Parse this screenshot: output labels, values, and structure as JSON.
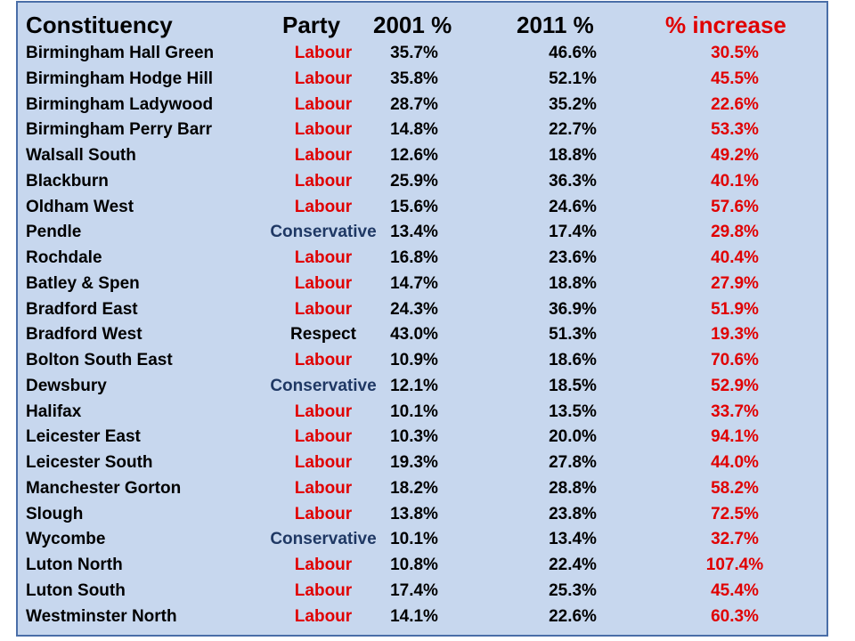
{
  "headers": {
    "constituency": "Constituency",
    "party": "Party",
    "y2001": "2001 %",
    "y2011": "2011 %",
    "increase": "% increase"
  },
  "colors": {
    "labour": "#e00000",
    "conservative": "#1f3864",
    "respect": "#000000",
    "increase": "#e00000",
    "background": "#c7d7ee",
    "border": "#4a6ea8"
  },
  "rows": [
    {
      "constituency": "Birmingham Hall Green",
      "party": "Labour",
      "y2001": "35.7%",
      "y2011": "46.6%",
      "increase": "30.5%"
    },
    {
      "constituency": "Birmingham Hodge Hill",
      "party": "Labour",
      "y2001": "35.8%",
      "y2011": "52.1%",
      "increase": "45.5%"
    },
    {
      "constituency": "Birmingham Ladywood",
      "party": "Labour",
      "y2001": "28.7%",
      "y2011": "35.2%",
      "increase": "22.6%"
    },
    {
      "constituency": "Birmingham Perry Barr",
      "party": "Labour",
      "y2001": "14.8%",
      "y2011": "22.7%",
      "increase": "53.3%"
    },
    {
      "constituency": "Walsall South",
      "party": "Labour",
      "y2001": "12.6%",
      "y2011": "18.8%",
      "increase": "49.2%"
    },
    {
      "constituency": "Blackburn",
      "party": "Labour",
      "y2001": "25.9%",
      "y2011": "36.3%",
      "increase": "40.1%"
    },
    {
      "constituency": "Oldham West",
      "party": "Labour",
      "y2001": "15.6%",
      "y2011": "24.6%",
      "increase": "57.6%"
    },
    {
      "constituency": "Pendle",
      "party": "Conservative",
      "y2001": "13.4%",
      "y2011": "17.4%",
      "increase": "29.8%"
    },
    {
      "constituency": "Rochdale",
      "party": "Labour",
      "y2001": "16.8%",
      "y2011": "23.6%",
      "increase": "40.4%"
    },
    {
      "constituency": "Batley & Spen",
      "party": "Labour",
      "y2001": "14.7%",
      "y2011": "18.8%",
      "increase": "27.9%"
    },
    {
      "constituency": "Bradford East",
      "party": "Labour",
      "y2001": "24.3%",
      "y2011": "36.9%",
      "increase": "51.9%"
    },
    {
      "constituency": "Bradford West",
      "party": "Respect",
      "y2001": "43.0%",
      "y2011": "51.3%",
      "increase": "19.3%"
    },
    {
      "constituency": "Bolton South East",
      "party": "Labour",
      "y2001": "10.9%",
      "y2011": "18.6%",
      "increase": "70.6%"
    },
    {
      "constituency": "Dewsbury",
      "party": "Conservative",
      "y2001": "12.1%",
      "y2011": "18.5%",
      "increase": "52.9%"
    },
    {
      "constituency": "Halifax",
      "party": "Labour",
      "y2001": "10.1%",
      "y2011": "13.5%",
      "increase": "33.7%"
    },
    {
      "constituency": "Leicester East",
      "party": "Labour",
      "y2001": "10.3%",
      "y2011": "20.0%",
      "increase": "94.1%"
    },
    {
      "constituency": "Leicester South",
      "party": "Labour",
      "y2001": "19.3%",
      "y2011": "27.8%",
      "increase": "44.0%"
    },
    {
      "constituency": "Manchester Gorton",
      "party": "Labour",
      "y2001": "18.2%",
      "y2011": "28.8%",
      "increase": "58.2%"
    },
    {
      "constituency": "Slough",
      "party": "Labour",
      "y2001": "13.8%",
      "y2011": "23.8%",
      "increase": "72.5%"
    },
    {
      "constituency": "Wycombe",
      "party": "Conservative",
      "y2001": "10.1%",
      "y2011": "13.4%",
      "increase": "32.7%"
    },
    {
      "constituency": "Luton North",
      "party": "Labour",
      "y2001": "10.8%",
      "y2011": "22.4%",
      "increase": "107.4%"
    },
    {
      "constituency": "Luton South",
      "party": "Labour",
      "y2001": "17.4%",
      "y2011": "25.3%",
      "increase": "45.4%"
    },
    {
      "constituency": "Westminster North",
      "party": "Labour",
      "y2001": "14.1%",
      "y2011": "22.6%",
      "increase": "60.3%"
    }
  ]
}
